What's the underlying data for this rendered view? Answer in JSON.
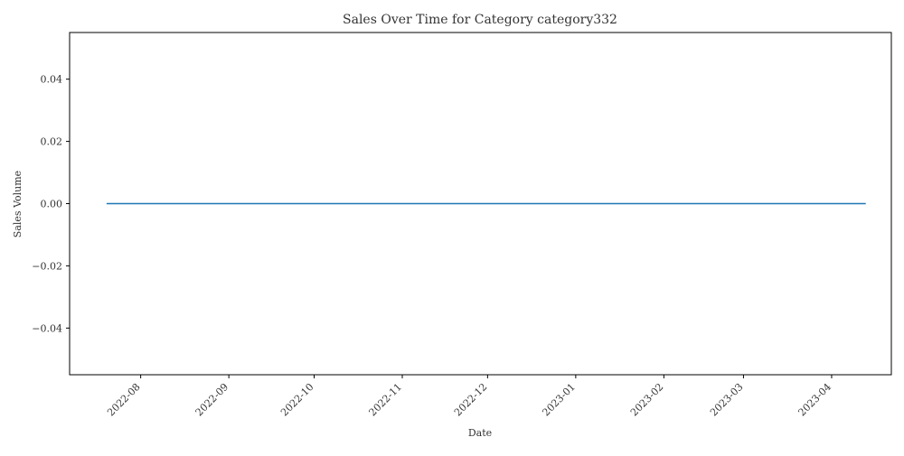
{
  "chart_data": {
    "type": "line",
    "title": "Sales Over Time for Category category332",
    "xlabel": "Date",
    "ylabel": "Sales Volume",
    "x_axis_type": "date",
    "xlim": [
      "2022-07-07",
      "2023-04-22"
    ],
    "ylim": [
      -0.055,
      0.055
    ],
    "x_ticks": [
      "2022-08-01",
      "2022-09-01",
      "2022-10-01",
      "2022-11-01",
      "2022-12-01",
      "2023-01-01",
      "2023-02-01",
      "2023-03-01",
      "2023-04-01"
    ],
    "x_tick_labels": [
      "2022-08",
      "2022-09",
      "2022-10",
      "2022-11",
      "2022-12",
      "2023-01",
      "2023-02",
      "2023-03",
      "2023-04"
    ],
    "y_ticks": [
      -0.04,
      -0.02,
      0.0,
      0.02,
      0.04
    ],
    "y_tick_labels": [
      "−0.04",
      "−0.02",
      "0.00",
      "0.02",
      "0.04"
    ],
    "grid": false,
    "series": [
      {
        "color": "#1f77b4",
        "x": [
          "2022-07-20",
          "2023-04-13"
        ],
        "y": [
          0,
          0
        ]
      }
    ]
  }
}
